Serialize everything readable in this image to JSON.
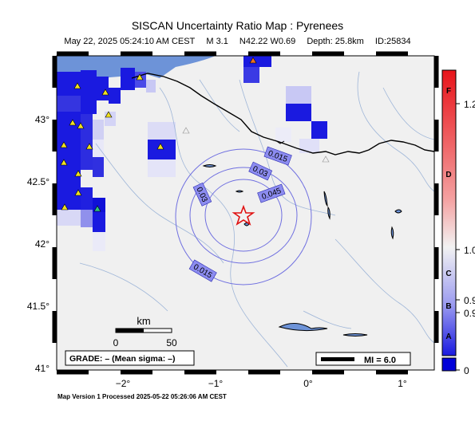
{
  "title": "SISCAN Uncertainty Ratio Map : Pyrenees",
  "subtitle": {
    "datetime": "May 22, 2025 05:24:10 AM CEST",
    "magnitude": "M 3.1",
    "location": "N42.22 W0.69",
    "depth": "Depth: 25.8km",
    "id": "ID:25834"
  },
  "axes": {
    "lat_ticks": [
      {
        "label": "43°",
        "value": 43
      },
      {
        "label": "42.5°",
        "value": 42.5
      },
      {
        "label": "42°",
        "value": 42
      },
      {
        "label": "41.5°",
        "value": 41.5
      },
      {
        "label": "41°",
        "value": 41
      }
    ],
    "lon_ticks": [
      {
        "label": "−2°",
        "value": -2
      },
      {
        "label": "−1°",
        "value": -1
      },
      {
        "label": "0°",
        "value": 0
      },
      {
        "label": "1°",
        "value": 1
      }
    ]
  },
  "contour_labels": [
    "0.015",
    "0.03",
    "0.045",
    "0.03",
    "0.015"
  ],
  "scale_bar": {
    "unit": "km",
    "ticks": [
      "0",
      "50"
    ]
  },
  "grade_box": "GRADE: – (Mean sigma: –)",
  "mi_legend": "MI = 6.0",
  "colorbar": {
    "grades": [
      "F",
      "D",
      "C",
      "B",
      "A"
    ],
    "values": [
      "1.2",
      "1.0",
      "0.9",
      "0.9",
      "0"
    ],
    "colors": {
      "high": "#e8141a",
      "mid": "#f2f2f2",
      "low": "#1a1ae0",
      "bottom": "#0000d8"
    }
  },
  "footer": "Map Version 1 Processed 2025-05-22 05:26:06 AM CEST",
  "colors": {
    "land": "#f0f0f0",
    "sea": "#6d93d8",
    "contour": "#7070e0",
    "label_box": "#8c8cf0",
    "epicenter": "#e01010"
  }
}
